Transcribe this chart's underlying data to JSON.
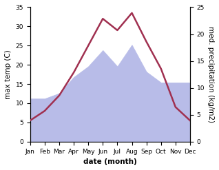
{
  "months": [
    "Jan",
    "Feb",
    "Mar",
    "Apr",
    "May",
    "Jun",
    "Jul",
    "Aug",
    "Sep",
    "Oct",
    "Nov",
    "Dec"
  ],
  "temperature": [
    5.5,
    8.0,
    12.0,
    18.0,
    25.0,
    32.0,
    29.0,
    33.5,
    26.0,
    19.0,
    9.0,
    5.5
  ],
  "precipitation": [
    8,
    8,
    9,
    12,
    14,
    17,
    14,
    18,
    13,
    11,
    11,
    11
  ],
  "temp_color": "#a03050",
  "precip_color": "#b8bce8",
  "temp_ylim": [
    0,
    35
  ],
  "precip_ylim": [
    0,
    25
  ],
  "temp_yticks": [
    0,
    5,
    10,
    15,
    20,
    25,
    30,
    35
  ],
  "precip_yticks": [
    0,
    5,
    10,
    15,
    20,
    25
  ],
  "xlabel": "date (month)",
  "ylabel_left": "max temp (C)",
  "ylabel_right": "med. precipitation (kg/m2)",
  "bg_color": "#ffffff",
  "label_fontsize": 7.5,
  "tick_fontsize": 6.5
}
